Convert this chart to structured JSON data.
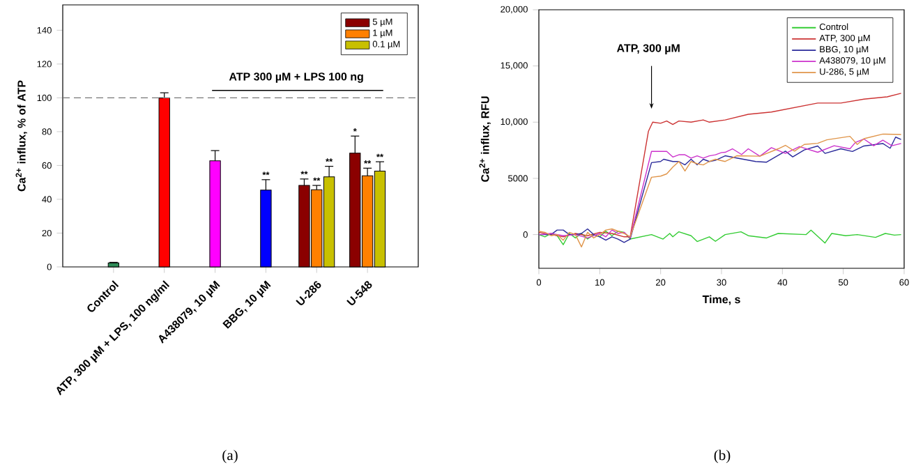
{
  "chart_data": [
    {
      "type": "bar",
      "ylabel": "Ca$^{2+}$ influx, % of ATP",
      "categories": [
        "Control",
        "ATP, 300 µM + LPS, 100 ng/ml",
        "A438079, 10 µM",
        "BBG, 10 µM",
        "U-286",
        "U-548"
      ],
      "series": [
        {
          "colors": [
            "#2e8b57",
            "#ff0000",
            "#ff00ff",
            "#0000ff",
            null,
            null
          ],
          "values": [
            2.4,
            100,
            62.8,
            45.4,
            null,
            null
          ],
          "errors": [
            [
              2.4,
              2.7
            ],
            [
              100,
              103
            ],
            [
              62.8,
              68.8
            ],
            [
              45.4,
              51.6
            ],
            null,
            null
          ],
          "value_labels": [
            null,
            null,
            null,
            "**",
            null,
            null
          ]
        },
        {
          "name": "5 µM",
          "color": "#8b0000",
          "values": [
            null,
            null,
            null,
            null,
            48.2,
            67.3
          ],
          "errors": [
            null,
            null,
            null,
            null,
            [
              48.2,
              52
            ],
            [
              67.3,
              77.4
            ]
          ],
          "value_labels": [
            null,
            null,
            null,
            null,
            "**",
            "*"
          ]
        },
        {
          "name": "1 µM",
          "color": "#ff8000",
          "values": [
            null,
            null,
            null,
            null,
            45.7,
            53.9
          ],
          "errors": [
            null,
            null,
            null,
            null,
            [
              45.7,
              48.2
            ],
            [
              53.9,
              58.4
            ]
          ],
          "value_labels": [
            null,
            null,
            null,
            null,
            "**",
            "**"
          ]
        },
        {
          "name": "0.1 µM",
          "color": "#c8c000",
          "values": [
            null,
            null,
            null,
            null,
            53.3,
            56.7
          ],
          "errors": [
            null,
            null,
            null,
            null,
            [
              53.3,
              59.5
            ],
            [
              56.7,
              62.2
            ]
          ],
          "value_labels": [
            null,
            null,
            null,
            null,
            "**",
            "**"
          ]
        }
      ],
      "ylim": [
        0,
        155
      ],
      "yticks": [
        0,
        20,
        40,
        60,
        80,
        100,
        120,
        140
      ],
      "ref_lines": [
        {
          "axis": "y",
          "value": 100,
          "color": "#777777",
          "line_style": "dashed"
        }
      ],
      "legend": "top right",
      "annotations": [
        "ATP 300 µM + LPS 100 ng",
        "(a)"
      ]
    },
    {
      "type": "line",
      "xlabel": "Time, s",
      "ylabel": "Ca$^{2+}$ influx, RFU",
      "xlim": [
        0,
        60
      ],
      "xticks": [
        0,
        10,
        20,
        30,
        40,
        50,
        60
      ],
      "ylim": [
        -3000,
        20000
      ],
      "yticks": [
        0,
        5000,
        {
          "value": 10000,
          "label": "10,000"
        },
        {
          "value": 15000,
          "label": "15,000"
        },
        {
          "value": 20000,
          "label": "20,000"
        }
      ],
      "legend": "top right",
      "series": [
        {
          "name": "Control",
          "color": "#33cc33",
          "x": [
            0,
            1,
            2,
            3,
            4,
            5,
            6,
            7,
            8,
            9,
            10,
            11,
            12,
            13,
            14,
            15,
            18.5,
            20.4,
            21.5,
            22,
            23,
            25,
            26,
            28,
            29,
            30.6,
            33.2,
            34.4,
            37.4,
            39.3,
            43.9,
            44.7,
            47,
            48.1,
            50.4,
            52.3,
            55.3,
            56.9,
            58.4,
            59.5
          ],
          "values": [
            0,
            -200,
            100,
            -100,
            -900,
            100,
            -300,
            100,
            -400,
            0,
            -200,
            300,
            -100,
            300,
            200,
            -400,
            0,
            -400,
            100,
            -200,
            250,
            -100,
            -620,
            -200,
            -600,
            0,
            250,
            -100,
            -300,
            100,
            0,
            400,
            -750,
            100,
            -100,
            0,
            -250,
            100,
            -50,
            0
          ]
        },
        {
          "name": "ATP, 300 µM",
          "color": "#cc3333",
          "x": [
            0,
            2,
            4,
            6,
            8,
            10,
            12,
            14,
            15,
            18,
            18.7,
            20,
            21,
            22,
            23,
            25,
            27,
            28,
            30.6,
            34.4,
            38.2,
            42,
            45.8,
            49.6,
            53.4,
            57.2,
            59.5
          ],
          "values": [
            200,
            0,
            -200,
            100,
            -100,
            200,
            100,
            -200,
            -200,
            9200,
            10000,
            9900,
            10100,
            9800,
            10100,
            10000,
            10200,
            10000,
            10200,
            10700,
            10900,
            11300,
            11700,
            11700,
            12050,
            12250,
            12570
          ]
        },
        {
          "name": "BBG, 10 µM",
          "color": "#2a2a9a",
          "x": [
            0,
            1,
            2,
            3,
            4,
            5,
            6,
            7,
            8,
            9,
            10,
            11,
            12,
            13,
            14,
            15,
            18.5,
            20,
            20.5,
            22,
            23,
            24,
            25,
            26,
            27,
            28,
            29,
            30.6,
            32.5,
            35.6,
            37.4,
            40.5,
            41.7,
            43.6,
            45.8,
            47,
            49.6,
            51.5,
            53.4,
            56.5,
            57.7,
            58.6,
            59.5
          ],
          "values": [
            0,
            0,
            0,
            400,
            400,
            0,
            0,
            100,
            500,
            0,
            -200,
            -500,
            -200,
            -400,
            -700,
            -400,
            6400,
            6500,
            6700,
            6500,
            6500,
            6200,
            6700,
            6200,
            6700,
            6500,
            6600,
            7010,
            6810,
            6500,
            6440,
            7420,
            6910,
            7530,
            7880,
            7220,
            7630,
            7390,
            7880,
            8100,
            7680,
            8670,
            8460
          ]
        },
        {
          "name": "A438079, 10 µM",
          "color": "#cc33cc",
          "x": [
            0,
            2,
            4,
            6,
            8,
            10,
            11,
            12,
            13,
            14,
            15,
            18.5,
            20,
            21,
            22,
            23,
            24,
            25,
            26,
            27,
            28,
            29,
            30,
            30.6,
            31.8,
            33.3,
            34.4,
            36.3,
            38.2,
            40.5,
            42.8,
            45.8,
            48.5,
            51.1,
            52,
            53.4,
            55,
            56.5,
            58,
            59.5
          ],
          "values": [
            0,
            100,
            -100,
            0,
            -300,
            100,
            -200,
            400,
            100,
            200,
            -300,
            7400,
            7400,
            7400,
            6900,
            7100,
            7100,
            6800,
            7000,
            6800,
            7000,
            7100,
            7300,
            7320,
            7630,
            7120,
            7630,
            6970,
            7730,
            7220,
            7830,
            7320,
            7900,
            7630,
            8200,
            8500,
            7900,
            8400,
            7900,
            8100
          ]
        },
        {
          "name": "U-286, 5 µM",
          "color": "#e0954a",
          "x": [
            0,
            1,
            2,
            3,
            4,
            5,
            6,
            7,
            8,
            9,
            10,
            11,
            12,
            13,
            14,
            15,
            18.5,
            20,
            21,
            22,
            23,
            24,
            25,
            26,
            27,
            28,
            29,
            30.6,
            32.5,
            36.3,
            39.3,
            40.5,
            42,
            43.6,
            45.8,
            47.3,
            51.1,
            52.3,
            53.4,
            56.5,
            59.5
          ],
          "values": [
            300,
            200,
            -100,
            0,
            -500,
            200,
            0,
            -1100,
            200,
            -300,
            0,
            400,
            500,
            300,
            100,
            -200,
            5100,
            5200,
            5400,
            6000,
            6500,
            5650,
            6500,
            6300,
            6200,
            6500,
            6700,
            6500,
            7010,
            6970,
            7630,
            7940,
            7420,
            8020,
            8120,
            8430,
            8740,
            8020,
            8530,
            8940,
            8900
          ]
        }
      ],
      "annotations": [
        "ATP, 300 µM",
        "(b)"
      ]
    }
  ]
}
